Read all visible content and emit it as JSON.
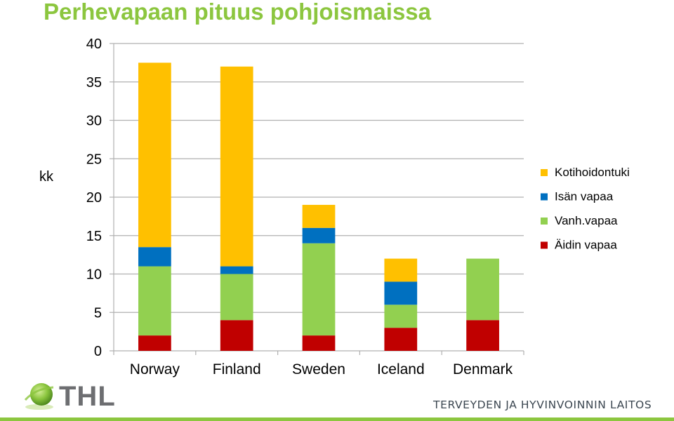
{
  "chart_data": {
    "type": "bar",
    "stacked": true,
    "title": "Perhevapaan pituus pohjoismaissa",
    "ylabel": "kk",
    "xlabel": "",
    "ylim": [
      0,
      40
    ],
    "yticks": [
      0,
      5,
      10,
      15,
      20,
      25,
      30,
      35,
      40
    ],
    "grid": true,
    "legend_position": "right",
    "categories": [
      "Norway",
      "Finland",
      "Sweden",
      "Iceland",
      "Denmark"
    ],
    "series": [
      {
        "name": "Äidin vapaa",
        "color": "#c00000",
        "values": [
          2,
          4,
          2,
          3,
          4
        ]
      },
      {
        "name": "Vanh.vapaa",
        "color": "#92d050",
        "values": [
          9,
          6,
          12,
          3,
          8
        ]
      },
      {
        "name": "Isän vapaa",
        "color": "#0070c0",
        "values": [
          2.5,
          1,
          2,
          3,
          0
        ]
      },
      {
        "name": "Kotihoidontuki",
        "color": "#ffc000",
        "values": [
          24,
          26,
          3,
          3,
          0
        ]
      }
    ]
  },
  "branding": {
    "logo_text": "THL",
    "organization": "TERVEYDEN JA HYVINVOINNIN LAITOS",
    "accent_color": "#8cc63f"
  }
}
